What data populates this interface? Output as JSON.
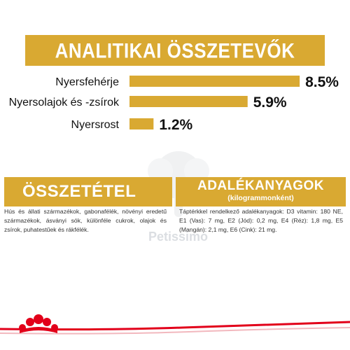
{
  "header": {
    "title": "ANALITIKAI ÖSSZETEVŐK"
  },
  "chart_data": {
    "type": "bar",
    "orientation": "horizontal",
    "categories": [
      "Nyersfehérje",
      "Nyersolajok és -zsírok",
      "Nyersrost"
    ],
    "values": [
      8.5,
      5.9,
      1.2
    ],
    "value_labels": [
      "8.5%",
      "5.9%",
      "1.2%"
    ],
    "bar_color": "#d9a932",
    "grid": false,
    "legend": "none"
  },
  "composition": {
    "title": "ÖSSZETÉTEL",
    "text": "Hús és állati származékok, gabonafélék, növényi eredetű származékok, ásványi sók, különféle cukrok, olajok és zsírok, puhatestűek és rákfélék."
  },
  "additives": {
    "title": "ADALÉKANYAGOK",
    "subtitle": "(kilogrammonként)",
    "text": "Táptérkkel rendelkező adalékanyagok: D3 vitamin: 180 NE, E1 (Vas): 7 mg, E2 (Jód): 0,2 mg, E4 (Réz): 1,8 mg, E5 (Mangán): 2,1 mg, E6 (Cink): 21 mg."
  },
  "watermark": {
    "text": "Petissimo"
  },
  "colors": {
    "accent": "#d9a932",
    "brand_red": "#e2001a",
    "text": "#333333"
  },
  "icons": {
    "logo": "royal-canin-crown-icon"
  }
}
